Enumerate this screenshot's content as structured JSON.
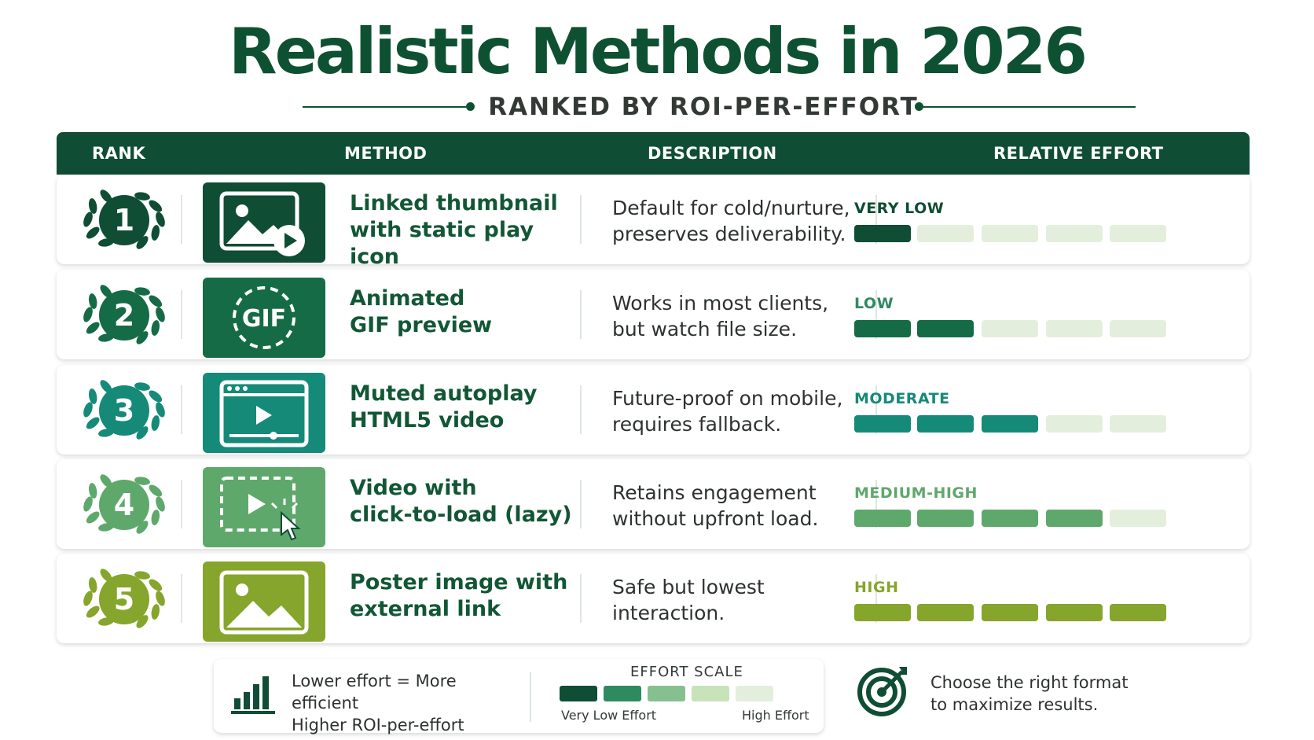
{
  "title": "Realistic Methods in 2026",
  "subtitle": "RANKED BY ROI-PER-EFFORT",
  "columns": {
    "rank": "RANK",
    "method": "METHOD",
    "description": "DESCRIPTION",
    "effort": "RELATIVE EFFORT"
  },
  "rows": [
    {
      "rank": "1",
      "method_line1": "Linked thumbnail",
      "method_line2": "with static play icon",
      "desc_line1": "Default for cold/nurture,",
      "desc_line2": "preserves deliverability.",
      "effort": "VERY LOW",
      "effort_level": 1,
      "icon": "image-play-icon",
      "color": "#0f4d34",
      "label_color": "#0f4d34"
    },
    {
      "rank": "2",
      "method_line1": "Animated",
      "method_line2": "GIF preview",
      "desc_line1": "Works in most clients,",
      "desc_line2": "but watch file size.",
      "effort": "LOW",
      "effort_level": 2,
      "icon": "gif-icon",
      "color": "#156b45",
      "label_color": "#2e8b5f"
    },
    {
      "rank": "3",
      "method_line1": "Muted autoplay",
      "method_line2": "HTML5 video",
      "desc_line1": "Future-proof on mobile,",
      "desc_line2": "requires fallback.",
      "effort": "MODERATE",
      "effort_level": 3,
      "icon": "video-player-icon",
      "color": "#168a78",
      "label_color": "#168a78"
    },
    {
      "rank": "4",
      "method_line1": "Video with",
      "method_line2": "click-to-load (lazy)",
      "desc_line1": "Retains engagement",
      "desc_line2": "without upfront load.",
      "effort": "MEDIUM-HIGH",
      "effort_level": 4,
      "icon": "click-to-play-icon",
      "color": "#5fa86c",
      "label_color": "#5fa86c"
    },
    {
      "rank": "5",
      "method_line1": "Poster image with",
      "method_line2": "external link",
      "desc_line1": "Safe but lowest",
      "desc_line2": "interaction.",
      "effort": "HIGH",
      "effort_level": 5,
      "icon": "image-icon",
      "color": "#86a52c",
      "label_color": "#86a52c"
    }
  ],
  "bar_empty_color": "#e3efdc",
  "legend": {
    "line1": "Lower effort = More efficient",
    "line2": "Higher ROI-per-effort",
    "scale_title": "EFFORT SCALE",
    "scale_low": "Very Low Effort",
    "scale_high": "High Effort",
    "scale_colors": [
      "#0f4d34",
      "#2e8b5f",
      "#86c08f",
      "#c7e3b9",
      "#e3efdc"
    ]
  },
  "cta_line1": "Choose the right format",
  "cta_line2": "to maximize results."
}
